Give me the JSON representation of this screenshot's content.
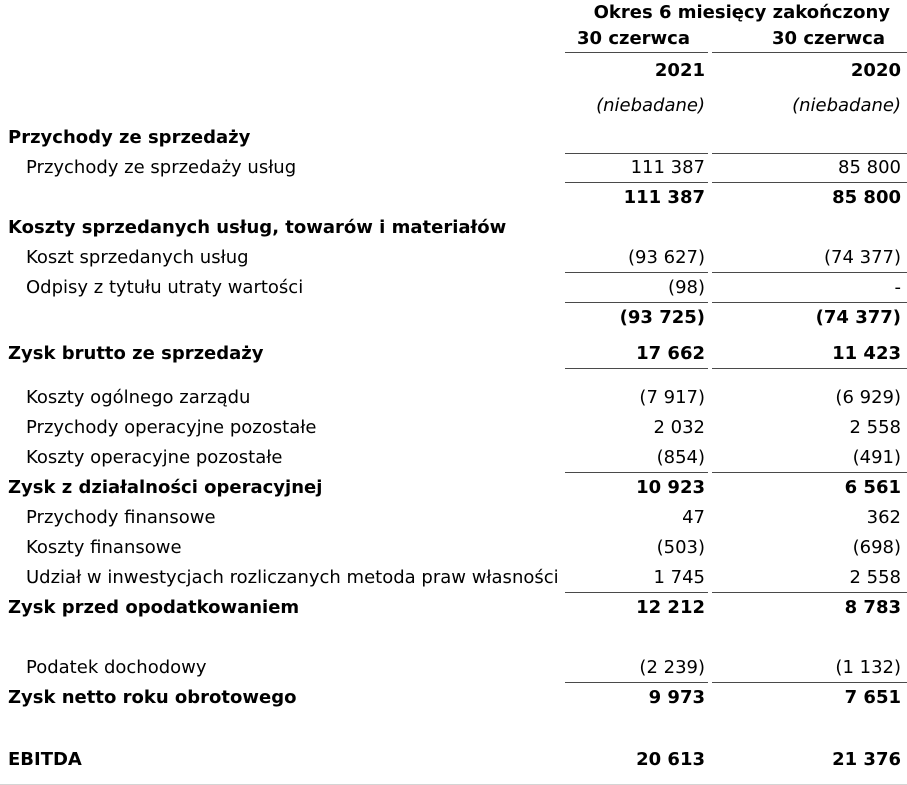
{
  "document": {
    "colors": {
      "rule": "#4a4a4a",
      "faint_rule": "#d4d4d4",
      "text": "#000000",
      "background": "#ffffff"
    },
    "header": {
      "period_title": "Okres 6 miesięcy zakończony",
      "columns": [
        {
          "date": "30 czerwca",
          "year": "2021",
          "note": "(niebadane)"
        },
        {
          "date": "30 czerwca",
          "year": "2020",
          "note": "(niebadane)"
        }
      ]
    },
    "rows": [
      {
        "label": "Przychody ze sprzedaży",
        "style": "section",
        "v2021": "",
        "v2020": ""
      },
      {
        "label": "Przychody ze sprzedaży usług",
        "style": "detail",
        "v2021": "111 387",
        "v2020": "85 800",
        "rule_top": true,
        "rule_bottom": true
      },
      {
        "label": "",
        "style": "total",
        "v2021": "111 387",
        "v2020": "85 800"
      },
      {
        "label": "Koszty sprzedanych usług, towarów i materiałów",
        "style": "section",
        "v2021": "",
        "v2020": ""
      },
      {
        "label": "Koszt sprzedanych usług",
        "style": "detail",
        "v2021": "(93 627)",
        "v2020": "(74 377)",
        "rule_bottom": true
      },
      {
        "label": "Odpisy z tytułu utraty wartości",
        "style": "detail",
        "v2021": "(98)",
        "v2020": "-",
        "rule_bottom": true
      },
      {
        "label": "",
        "style": "total",
        "v2021": "(93 725)",
        "v2020": "(74 377)"
      },
      {
        "label": "Zysk brutto ze sprzedaży",
        "style": "total",
        "v2021": "17 662",
        "v2020": "11 423",
        "rule_bottom": true,
        "gap_above": 6
      },
      {
        "label": "Koszty ogólnego zarządu",
        "style": "detail",
        "v2021": "(7 917)",
        "v2020": "(6 929)",
        "gap_above": 14
      },
      {
        "label": "Przychody operacyjne pozostałe",
        "style": "detail",
        "v2021": "2 032",
        "v2020": "2 558"
      },
      {
        "label": "Koszty operacyjne pozostałe",
        "style": "detail",
        "v2021": "(854)",
        "v2020": "(491)",
        "rule_bottom": true
      },
      {
        "label": "Zysk z działalności operacyjnej",
        "style": "total",
        "v2021": "10 923",
        "v2020": "6 561"
      },
      {
        "label": "Przychody finansowe",
        "style": "detail",
        "v2021": "47",
        "v2020": "362"
      },
      {
        "label": "Koszty finansowe",
        "style": "detail",
        "v2021": "(503)",
        "v2020": "(698)"
      },
      {
        "label": "Udział w inwestycjach rozliczanych metoda praw własności",
        "style": "detail",
        "v2021": "1 745",
        "v2020": "2 558",
        "rule_bottom": true
      },
      {
        "label": "Zysk przed opodatkowaniem",
        "style": "total",
        "v2021": "12 212",
        "v2020": "8 783"
      },
      {
        "label": "Podatek dochodowy",
        "style": "detail",
        "v2021": "(2 239)",
        "v2020": "(1 132)",
        "rule_bottom": true,
        "gap_above": 30
      },
      {
        "label": "Zysk netto roku obrotowego",
        "style": "total",
        "v2021": "9 973",
        "v2020": "7 651"
      },
      {
        "label": "EBITDA",
        "style": "total",
        "v2021": "20 613",
        "v2020": "21 376",
        "gap_above": 32
      }
    ]
  }
}
